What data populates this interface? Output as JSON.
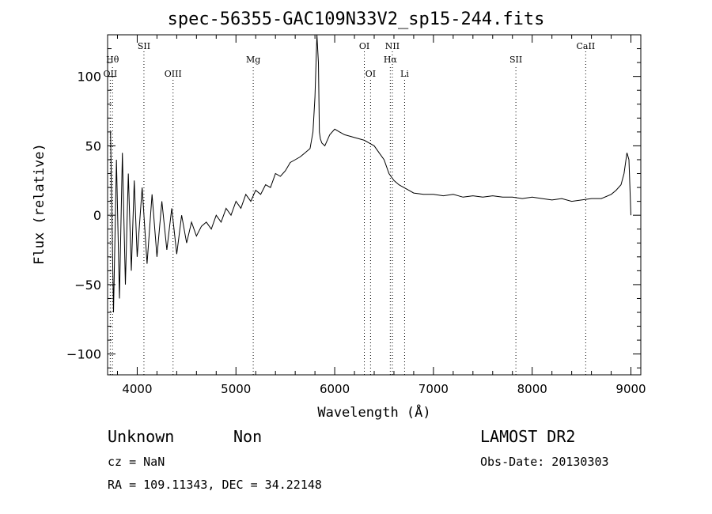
{
  "chart_data": {
    "type": "line",
    "title": "spec-56355-GAC109N33V2_sp15-244.fits",
    "xlabel": "Wavelength (Å)",
    "ylabel": "Flux (relative)",
    "xlim": [
      3700,
      9100
    ],
    "ylim": [
      -115,
      130
    ],
    "grid": false,
    "x_ticks": [
      4000,
      5000,
      6000,
      7000,
      8000,
      9000
    ],
    "x_tick_labels": [
      "4000",
      "5000",
      "6000",
      "7000",
      "8000",
      "9000"
    ],
    "y_ticks": [
      -100,
      -50,
      0,
      50,
      100
    ],
    "y_tick_labels": [
      "−100",
      "−50",
      "0",
      "50",
      "100"
    ],
    "series": [
      {
        "x": [
          3730,
          3760,
          3790,
          3820,
          3850,
          3880,
          3910,
          3940,
          3970,
          4000,
          4050,
          4100,
          4150,
          4200,
          4250,
          4300,
          4350,
          4400,
          4450,
          4500,
          4550,
          4600,
          4650,
          4700,
          4750,
          4800,
          4850,
          4900,
          4950,
          5000,
          5050,
          5100,
          5150,
          5200,
          5250,
          5300,
          5350,
          5400,
          5450,
          5500,
          5550,
          5600,
          5650,
          5700,
          5750,
          5780,
          5800,
          5820,
          5835,
          5845,
          5855,
          5870,
          5900,
          5950,
          6000,
          6050,
          6100,
          6150,
          6200,
          6250,
          6300,
          6350,
          6400,
          6450,
          6500,
          6550,
          6600,
          6650,
          6700,
          6750,
          6800,
          6900,
          7000,
          7100,
          7200,
          7300,
          7400,
          7500,
          7600,
          7700,
          7800,
          7900,
          8000,
          8100,
          8200,
          8300,
          8400,
          8500,
          8600,
          8700,
          8800,
          8850,
          8900,
          8930,
          8960,
          8980,
          9000
        ],
        "y": [
          60,
          -70,
          40,
          -60,
          45,
          -50,
          30,
          -40,
          25,
          -30,
          20,
          -35,
          15,
          -30,
          10,
          -25,
          5,
          -28,
          0,
          -20,
          -5,
          -15,
          -8,
          -5,
          -10,
          0,
          -5,
          5,
          0,
          10,
          5,
          15,
          10,
          18,
          15,
          22,
          20,
          30,
          28,
          32,
          38,
          40,
          42,
          45,
          48,
          60,
          85,
          135,
          110,
          60,
          55,
          52,
          50,
          58,
          62,
          60,
          58,
          57,
          56,
          55,
          54,
          52,
          50,
          45,
          40,
          30,
          25,
          22,
          20,
          18,
          16,
          15,
          15,
          14,
          15,
          13,
          14,
          13,
          14,
          13,
          13,
          12,
          13,
          12,
          11,
          12,
          10,
          11,
          12,
          12,
          15,
          18,
          22,
          30,
          45,
          40,
          0
        ]
      }
    ],
    "line_labels": [
      {
        "x": 3727,
        "label": "OII",
        "row": 2
      },
      {
        "x": 3750,
        "label": "Hθ",
        "row": 1
      },
      {
        "x": 4068,
        "label": "SII",
        "row": 0
      },
      {
        "x": 4363,
        "label": "OIII",
        "row": 2
      },
      {
        "x": 5175,
        "label": "Mg",
        "row": 1
      },
      {
        "x": 6300,
        "label": "OI",
        "row": 0
      },
      {
        "x": 6363,
        "label": "OI",
        "row": 2
      },
      {
        "x": 6563,
        "label": "Hα",
        "row": 1
      },
      {
        "x": 6584,
        "label": "NII",
        "row": 0
      },
      {
        "x": 6708,
        "label": "Li",
        "row": 2
      },
      {
        "x": 7835,
        "label": "SII",
        "row": 1
      },
      {
        "x": 8542,
        "label": "CaII",
        "row": 0
      }
    ]
  },
  "info": {
    "class_label": "Unknown",
    "subclass_label": "Non",
    "cz": "cz = NaN",
    "radec": "RA = 109.11343, DEC =  34.22148",
    "survey": "LAMOST DR2",
    "obs_date": "Obs-Date: 20130303"
  }
}
